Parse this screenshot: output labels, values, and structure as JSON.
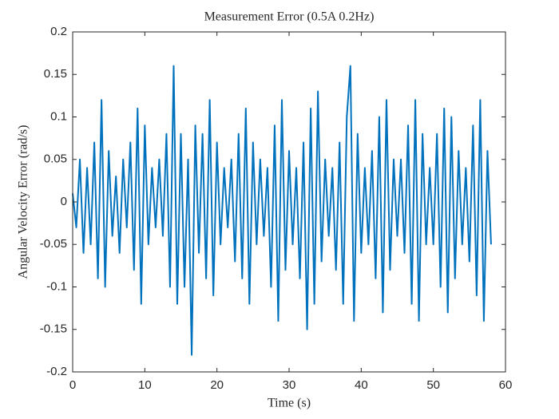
{
  "chart_data": {
    "type": "line",
    "title": "Measurement Error (0.5A 0.2Hz)",
    "x_label": "Time (s)",
    "y_label": "Angular Velocity Error (rad/s)",
    "xlim": [
      0,
      60
    ],
    "xticks": [
      0,
      10,
      20,
      30,
      40,
      50,
      60
    ],
    "ylim": [
      -0.2,
      0.2
    ],
    "yticks": [
      -0.2,
      -0.15,
      -0.1,
      -0.05,
      0,
      0.05,
      0.1,
      0.15,
      0.2
    ],
    "grid": false,
    "series": [
      {
        "color": "#0072bd",
        "x": [
          0,
          0.5,
          1,
          1.5,
          2,
          2.5,
          3,
          3.5,
          4,
          4.5,
          5,
          5.5,
          6,
          6.5,
          7,
          7.5,
          8,
          8.5,
          9,
          9.5,
          10,
          10.5,
          11,
          11.5,
          12,
          12.5,
          13,
          13.5,
          14,
          14.5,
          15,
          15.5,
          16,
          16.5,
          17,
          17.5,
          18,
          18.5,
          19,
          19.5,
          20,
          20.5,
          21,
          21.5,
          22,
          22.5,
          23,
          23.5,
          24,
          24.5,
          25,
          25.5,
          26,
          26.5,
          27,
          27.5,
          28,
          28.5,
          29,
          29.5,
          30,
          30.5,
          31,
          31.5,
          32,
          32.5,
          33,
          33.5,
          34,
          34.5,
          35,
          35.5,
          36,
          36.5,
          37,
          37.5,
          38,
          38.5,
          39,
          39.5,
          40,
          40.5,
          41,
          41.5,
          42,
          42.5,
          43,
          43.5,
          44,
          44.5,
          45,
          45.5,
          46,
          46.5,
          47,
          47.5,
          48,
          48.5,
          49,
          49.5,
          50,
          50.5,
          51,
          51.5,
          52,
          52.5,
          53,
          53.5,
          54,
          54.5,
          55,
          55.5,
          56,
          56.5,
          57,
          57.5,
          58
        ],
        "values": [
          0.01,
          -0.03,
          0.05,
          -0.06,
          0.04,
          -0.05,
          0.07,
          -0.09,
          0.12,
          -0.1,
          0.06,
          -0.04,
          0.03,
          -0.06,
          0.05,
          -0.03,
          0.07,
          -0.08,
          0.11,
          -0.12,
          0.09,
          -0.05,
          0.04,
          -0.03,
          0.05,
          -0.04,
          0.08,
          -0.1,
          0.16,
          -0.12,
          0.08,
          -0.1,
          0.05,
          -0.18,
          0.09,
          -0.06,
          0.08,
          -0.09,
          0.12,
          -0.11,
          0.07,
          -0.05,
          0.04,
          -0.03,
          0.05,
          -0.07,
          0.08,
          -0.09,
          0.11,
          -0.12,
          0.07,
          -0.05,
          0.05,
          -0.04,
          0.04,
          -0.1,
          0.09,
          -0.14,
          0.12,
          -0.08,
          0.06,
          -0.05,
          0.04,
          -0.09,
          0.07,
          -0.15,
          0.11,
          -0.12,
          0.13,
          -0.07,
          0.05,
          -0.04,
          0.04,
          -0.08,
          0.07,
          -0.12,
          0.1,
          0.16,
          -0.14,
          0.08,
          -0.06,
          0.04,
          -0.05,
          0.06,
          -0.09,
          0.1,
          -0.13,
          0.12,
          -0.08,
          0.05,
          -0.04,
          0.05,
          -0.06,
          0.09,
          -0.12,
          0.12,
          -0.14,
          0.08,
          -0.05,
          0.04,
          -0.05,
          0.08,
          -0.1,
          0.11,
          -0.13,
          0.1,
          -0.09,
          0.06,
          -0.05,
          0.04,
          -0.07,
          0.09,
          -0.11,
          0.12,
          -0.14,
          0.06,
          -0.05
        ]
      }
    ]
  }
}
